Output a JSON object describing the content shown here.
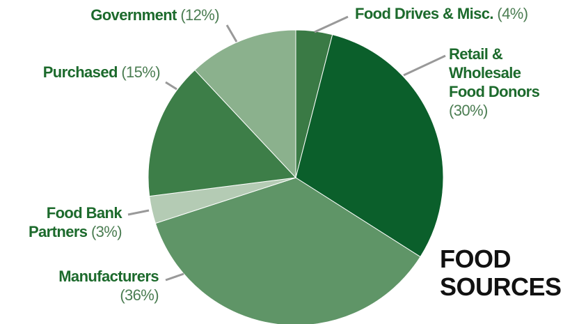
{
  "chart_data": {
    "type": "pie",
    "title": "FOOD SOURCES",
    "categories": [
      "Food Drives & Misc.",
      "Retail & Wholesale Food Donors",
      "Manufacturers",
      "Food Bank Partners",
      "Purchased",
      "Government"
    ],
    "values": [
      4,
      30,
      36,
      3,
      15,
      12
    ],
    "value_labels": [
      "(4%)",
      "(30%)",
      "(36%)",
      "(3%)",
      "(15%)",
      "(12%)"
    ],
    "colors": [
      "#3a7a45",
      "#0b5f2b",
      "#5f9567",
      "#b4cbb4",
      "#3d7e48",
      "#8bb18d"
    ]
  }
}
